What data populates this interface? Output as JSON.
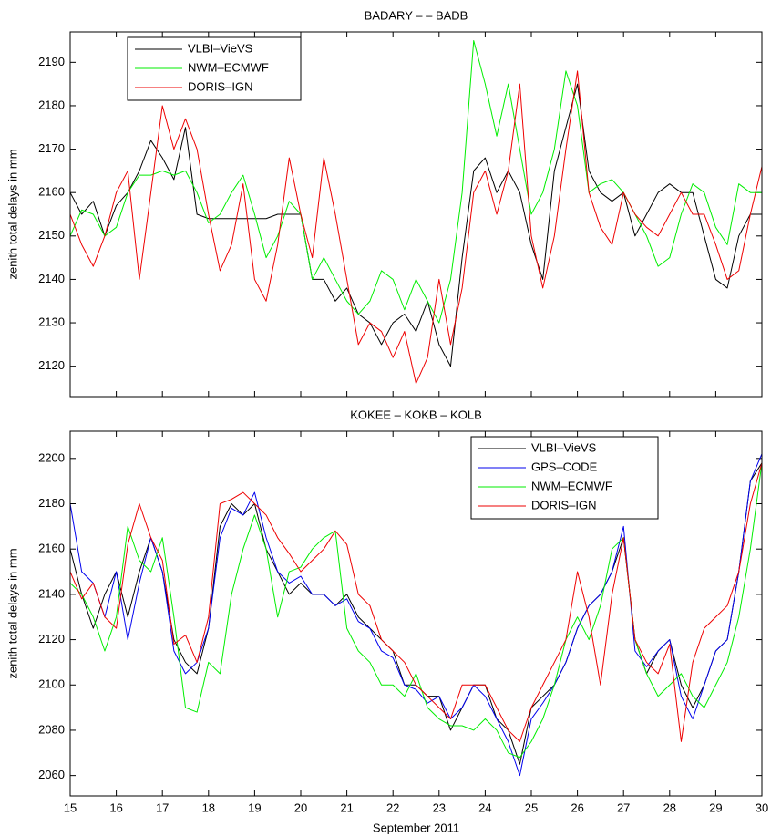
{
  "chart_data": [
    {
      "type": "line",
      "title": "BADARY  – – BADB",
      "ylabel": "zenith total delays in mm",
      "x": [
        15,
        15.25,
        15.5,
        15.75,
        16,
        16.25,
        16.5,
        16.75,
        17,
        17.25,
        17.5,
        17.75,
        18,
        18.25,
        18.5,
        18.75,
        19,
        19.25,
        19.5,
        19.75,
        20,
        20.25,
        20.5,
        20.75,
        21,
        21.25,
        21.5,
        21.75,
        22,
        22.25,
        22.5,
        22.75,
        23,
        23.25,
        23.5,
        23.75,
        24,
        24.25,
        24.5,
        24.75,
        25,
        25.25,
        25.5,
        25.75,
        26,
        26.25,
        26.5,
        26.75,
        27,
        27.25,
        27.5,
        27.75,
        28,
        28.25,
        28.5,
        28.75,
        29,
        29.25,
        29.5,
        29.75,
        30
      ],
      "xlim": [
        15,
        30
      ],
      "xticks": [
        15,
        16,
        17,
        18,
        19,
        20,
        21,
        22,
        23,
        24,
        25,
        26,
        27,
        28,
        29,
        30
      ],
      "show_xtick_labels": false,
      "ylim": [
        2113,
        2197
      ],
      "yticks": [
        2120,
        2130,
        2140,
        2150,
        2160,
        2170,
        2180,
        2190
      ],
      "legend": "upper left",
      "series": [
        {
          "name": "VLBI–VieVS",
          "color": "#000000",
          "values": [
            2160,
            2155,
            2158,
            2150,
            2157,
            2160,
            2165,
            2172,
            2168,
            2163,
            2175,
            2155,
            2154,
            2154,
            2154,
            2154,
            2154,
            2154,
            2155,
            2155,
            2155,
            2140,
            2140,
            2135,
            2138,
            2132,
            2130,
            2125,
            2130,
            2132,
            2128,
            2135,
            2125,
            2120,
            2145,
            2165,
            2168,
            2160,
            2165,
            2160,
            2148,
            2140,
            2165,
            2175,
            2185,
            2165,
            2160,
            2158,
            2160,
            2150,
            2155,
            2160,
            2162,
            2160,
            2160,
            2150,
            2140,
            2138,
            2150,
            2155,
            2155
          ]
        },
        {
          "name": "NWM–ECMWF",
          "color": "#00ee00",
          "values": [
            2150,
            2156,
            2155,
            2150,
            2152,
            2160,
            2164,
            2164,
            2165,
            2164,
            2165,
            2160,
            2153,
            2155,
            2160,
            2164,
            2155,
            2145,
            2150,
            2158,
            2155,
            2140,
            2145,
            2140,
            2135,
            2132,
            2135,
            2142,
            2140,
            2133,
            2140,
            2135,
            2130,
            2140,
            2160,
            2195,
            2185,
            2173,
            2185,
            2170,
            2155,
            2160,
            2170,
            2188,
            2180,
            2160,
            2162,
            2163,
            2160,
            2155,
            2150,
            2143,
            2145,
            2155,
            2162,
            2160,
            2152,
            2148,
            2162,
            2160,
            2160
          ]
        },
        {
          "name": "DORIS–IGN",
          "color": "#ee0000",
          "values": [
            2155,
            2148,
            2143,
            2150,
            2160,
            2165,
            2140,
            2160,
            2180,
            2170,
            2177,
            2170,
            2155,
            2142,
            2148,
            2162,
            2140,
            2135,
            2148,
            2168,
            2155,
            2145,
            2168,
            2155,
            2140,
            2125,
            2130,
            2128,
            2122,
            2128,
            2116,
            2122,
            2140,
            2125,
            2138,
            2160,
            2165,
            2155,
            2165,
            2185,
            2150,
            2138,
            2150,
            2170,
            2188,
            2160,
            2152,
            2148,
            2160,
            2155,
            2152,
            2150,
            2155,
            2160,
            2155,
            2155,
            2148,
            2140,
            2142,
            2155,
            2166
          ]
        }
      ]
    },
    {
      "type": "line",
      "title": "KOKEE    – KOKB – KOLB",
      "ylabel": "zenith total delays in mm",
      "xlabel": "September 2011",
      "x": [
        15,
        15.25,
        15.5,
        15.75,
        16,
        16.25,
        16.5,
        16.75,
        17,
        17.25,
        17.5,
        17.75,
        18,
        18.25,
        18.5,
        18.75,
        19,
        19.25,
        19.5,
        19.75,
        20,
        20.25,
        20.5,
        20.75,
        21,
        21.25,
        21.5,
        21.75,
        22,
        22.25,
        22.5,
        22.75,
        23,
        23.25,
        23.5,
        23.75,
        24,
        24.25,
        24.5,
        24.75,
        25,
        25.25,
        25.5,
        25.75,
        26,
        26.25,
        26.5,
        26.75,
        27,
        27.25,
        27.5,
        27.75,
        28,
        28.25,
        28.5,
        28.75,
        29,
        29.25,
        29.5,
        29.75,
        30
      ],
      "xlim": [
        15,
        30
      ],
      "xticks": [
        15,
        16,
        17,
        18,
        19,
        20,
        21,
        22,
        23,
        24,
        25,
        26,
        27,
        28,
        29,
        30
      ],
      "show_xtick_labels": true,
      "ylim": [
        2051,
        2212
      ],
      "yticks": [
        2060,
        2080,
        2100,
        2120,
        2140,
        2160,
        2180,
        2200
      ],
      "legend": "upper right",
      "series": [
        {
          "name": "VLBI–VieVS",
          "color": "#000000",
          "values": [
            2160,
            2140,
            2125,
            2140,
            2150,
            2130,
            2150,
            2165,
            2150,
            2120,
            2110,
            2105,
            2125,
            2170,
            2180,
            2175,
            2180,
            2160,
            2150,
            2140,
            2145,
            2140,
            2140,
            2135,
            2140,
            2130,
            2125,
            2120,
            2115,
            2100,
            2100,
            2095,
            2095,
            2080,
            2090,
            2100,
            2100,
            2085,
            2080,
            2065,
            2090,
            2095,
            2100,
            2110,
            2125,
            2135,
            2140,
            2150,
            2165,
            2120,
            2105,
            2115,
            2120,
            2100,
            2090,
            2100,
            2115,
            2120,
            2150,
            2190,
            2198
          ]
        },
        {
          "name": "GPS–CODE",
          "color": "#0000ee",
          "values": [
            2180,
            2150,
            2145,
            2130,
            2150,
            2120,
            2145,
            2165,
            2150,
            2115,
            2105,
            2110,
            2125,
            2165,
            2178,
            2175,
            2185,
            2165,
            2150,
            2145,
            2148,
            2140,
            2140,
            2135,
            2138,
            2128,
            2125,
            2115,
            2112,
            2100,
            2098,
            2092,
            2095,
            2085,
            2090,
            2100,
            2095,
            2085,
            2075,
            2060,
            2085,
            2092,
            2100,
            2110,
            2125,
            2135,
            2140,
            2150,
            2170,
            2115,
            2108,
            2115,
            2120,
            2095,
            2085,
            2100,
            2115,
            2120,
            2150,
            2190,
            2202
          ]
        },
        {
          "name": "NWM–ECMWF",
          "color": "#00ee00",
          "values": [
            2145,
            2140,
            2130,
            2115,
            2130,
            2170,
            2155,
            2150,
            2165,
            2130,
            2090,
            2088,
            2110,
            2105,
            2140,
            2160,
            2175,
            2160,
            2130,
            2150,
            2152,
            2160,
            2165,
            2168,
            2125,
            2115,
            2110,
            2100,
            2100,
            2095,
            2105,
            2090,
            2085,
            2082,
            2082,
            2080,
            2085,
            2080,
            2070,
            2068,
            2075,
            2085,
            2100,
            2120,
            2130,
            2120,
            2135,
            2160,
            2165,
            2120,
            2105,
            2095,
            2100,
            2105,
            2095,
            2090,
            2100,
            2110,
            2130,
            2160,
            2198
          ]
        },
        {
          "name": "DORIS–IGN",
          "color": "#ee0000",
          "values": [
            2150,
            2138,
            2145,
            2130,
            2125,
            2162,
            2180,
            2165,
            2155,
            2118,
            2122,
            2110,
            2130,
            2180,
            2182,
            2185,
            2180,
            2175,
            2165,
            2158,
            2150,
            2155,
            2160,
            2168,
            2162,
            2140,
            2135,
            2120,
            2115,
            2110,
            2100,
            2095,
            2090,
            2085,
            2100,
            2100,
            2100,
            2090,
            2080,
            2075,
            2090,
            2100,
            2110,
            2120,
            2150,
            2130,
            2100,
            2140,
            2165,
            2120,
            2110,
            2105,
            2118,
            2075,
            2110,
            2125,
            2130,
            2135,
            2150,
            2180,
            2198
          ]
        }
      ]
    }
  ]
}
